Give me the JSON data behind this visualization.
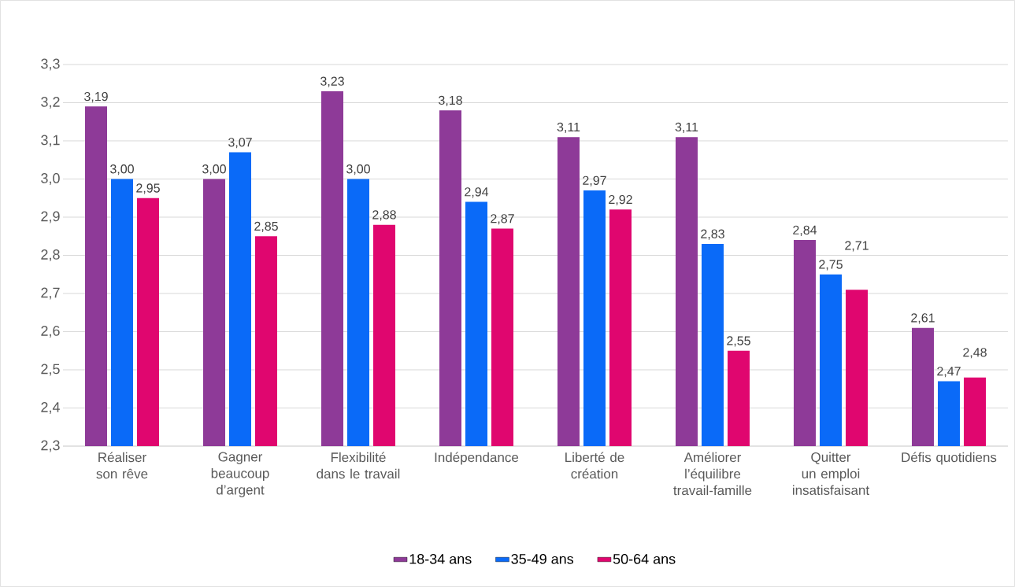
{
  "chart_data": {
    "type": "bar",
    "categories": [
      "Réaliser son rêve",
      "Gagner beaucoup d’argent",
      "Flexibilité dans le travail",
      "Indépendance",
      "Liberté de création",
      "Améliorer l’équilibre travail-famille",
      "Quitter un emploi insatisfaisant",
      "Défis quotidiens"
    ],
    "series": [
      {
        "name": "18-34 ans",
        "color": "#8E3A98",
        "values": [
          3.19,
          3.0,
          3.23,
          3.18,
          3.11,
          3.11,
          2.84,
          2.61
        ],
        "value_labels": [
          "3,19",
          "3,00",
          "3,23",
          "3,18",
          "3,11",
          "3,11",
          "2,84",
          "2,61"
        ]
      },
      {
        "name": "35-49 ans",
        "color": "#0A6AF8",
        "values": [
          3.0,
          3.07,
          3.0,
          2.94,
          2.97,
          2.83,
          2.75,
          2.47
        ],
        "value_labels": [
          "3,00",
          "3,07",
          "3,00",
          "2,94",
          "2,97",
          "2,83",
          "2,75",
          "2,47"
        ]
      },
      {
        "name": "50-64 ans",
        "color": "#E0066F",
        "values": [
          2.95,
          2.85,
          2.88,
          2.87,
          2.92,
          2.55,
          2.71,
          2.48
        ],
        "value_labels": [
          "2,95",
          "2,85",
          "2,88",
          "2,87",
          "2,92",
          "2,55",
          "2,71",
          "2,48"
        ]
      }
    ],
    "ylim": [
      2.3,
      3.3
    ],
    "yticks": [
      {
        "value": 2.3,
        "label": "2,3"
      },
      {
        "value": 2.4,
        "label": "2,4"
      },
      {
        "value": 2.5,
        "label": "2,5"
      },
      {
        "value": 2.6,
        "label": "2,6"
      },
      {
        "value": 2.7,
        "label": "2,7"
      },
      {
        "value": 2.8,
        "label": "2,8"
      },
      {
        "value": 2.9,
        "label": "2,9"
      },
      {
        "value": 3.0,
        "label": "3,0"
      },
      {
        "value": 3.1,
        "label": "3,1"
      },
      {
        "value": 3.2,
        "label": "3,2"
      },
      {
        "value": 3.3,
        "label": "3,3"
      }
    ],
    "grid": "y",
    "legend": "bottom"
  }
}
